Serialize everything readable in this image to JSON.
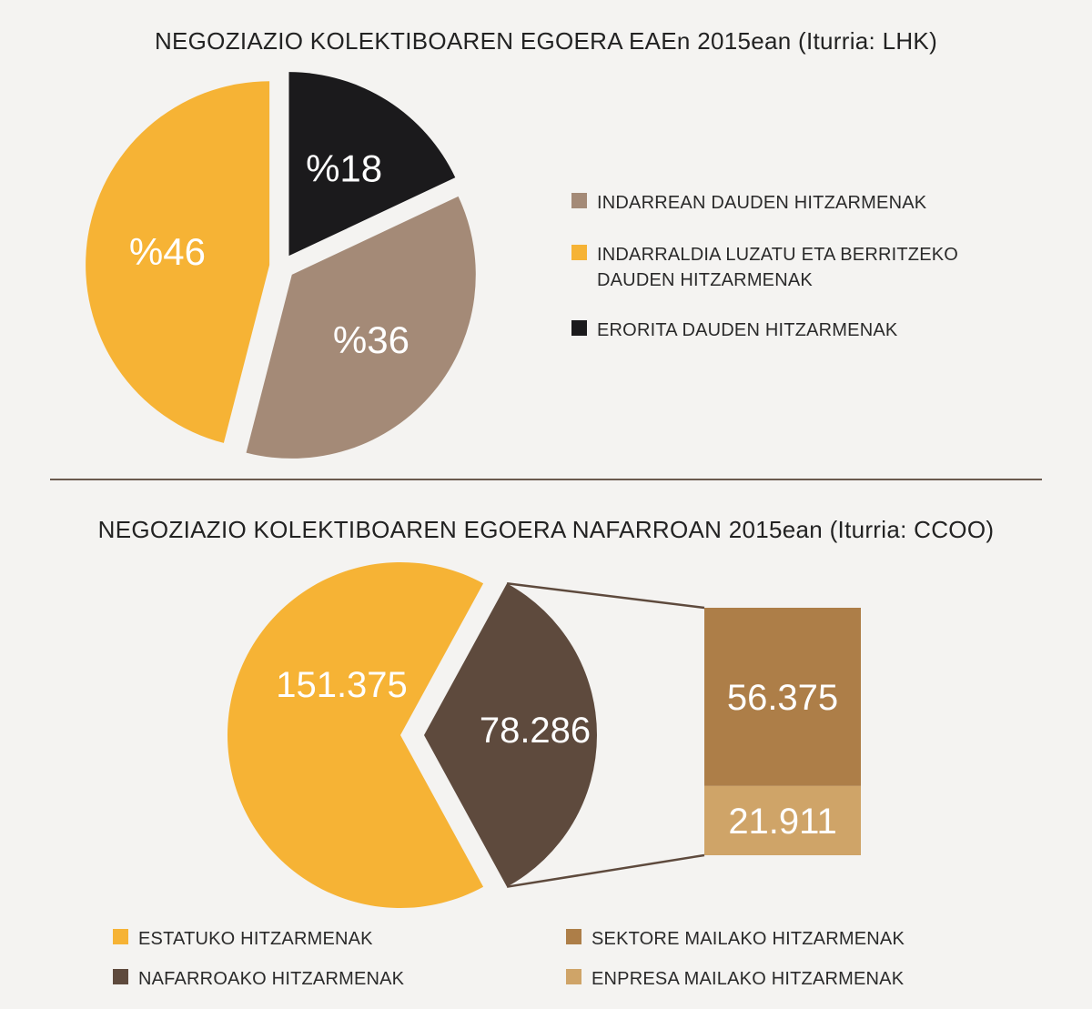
{
  "colors": {
    "background": "#f4f3f1",
    "yellow": "#f6b335",
    "taupe": "#a48a77",
    "black": "#1b1a1c",
    "dark_brown": "#5e4a3d",
    "sector_brown": "#ad7e48",
    "company_tan": "#cfa468",
    "connector": "#5e4a3d"
  },
  "chart_data": [
    {
      "type": "pie",
      "title": "NEGOZIAZIO KOLEKTIBOAREN EGOERA EAEn 2015ean (Iturria: LHK)",
      "slices": [
        {
          "name": "INDARREAN DAUDEN HITZARMENAK",
          "value": 36,
          "label": "%36",
          "color": "#a48a77"
        },
        {
          "name": "INDARRALDIA LUZATU ETA BERRITZEKO DAUDEN HITZARMENAK",
          "value": 46,
          "label": "%46",
          "color": "#f6b335"
        },
        {
          "name": "ERORITA DAUDEN HITZARMENAK",
          "value": 18,
          "label": "%18",
          "color": "#1b1a1c"
        }
      ],
      "legend_position": "right",
      "legend": [
        {
          "lines": [
            "INDARREAN DAUDEN HITZARMENAK"
          ],
          "color": "#a48a77"
        },
        {
          "lines": [
            "INDARRALDIA LUZATU ETA BERRITZEKO",
            "DAUDEN HITZARMENAK"
          ],
          "color": "#f6b335"
        },
        {
          "lines": [
            "ERORITA DAUDEN HITZARMENAK"
          ],
          "color": "#1b1a1c"
        }
      ]
    },
    {
      "type": "pie",
      "title": "NEGOZIAZIO KOLEKTIBOAREN EGOERA NAFARROAN 2015ean (Iturria: CCOO)",
      "slices": [
        {
          "name": "ESTATUKO HITZARMENAK",
          "value": 151375,
          "label": "151.375",
          "color": "#f6b335"
        },
        {
          "name": "NAFARROAKO HITZARMENAK",
          "value": 78286,
          "label": "78.286",
          "color": "#5e4a3d"
        }
      ],
      "breakdown": {
        "of": "NAFARROAKO HITZARMENAK",
        "type": "stacked-bar",
        "segments": [
          {
            "name": "SEKTORE MAILAKO HITZARMENAK",
            "value": 56375,
            "label": "56.375",
            "color": "#ad7e48"
          },
          {
            "name": "ENPRESA MAILAKO HITZARMENAK",
            "value": 21911,
            "label": "21.911",
            "color": "#cfa468"
          }
        ]
      },
      "legend_position": "bottom",
      "legend": [
        {
          "lines": [
            "ESTATUKO HITZARMENAK"
          ],
          "color": "#f6b335"
        },
        {
          "lines": [
            "NAFARROAKO HITZARMENAK"
          ],
          "color": "#5e4a3d"
        },
        {
          "lines": [
            "SEKTORE MAILAKO HITZARMENAK"
          ],
          "color": "#ad7e48"
        },
        {
          "lines": [
            "ENPRESA MAILAKO HITZARMENAK"
          ],
          "color": "#cfa468"
        }
      ]
    }
  ]
}
